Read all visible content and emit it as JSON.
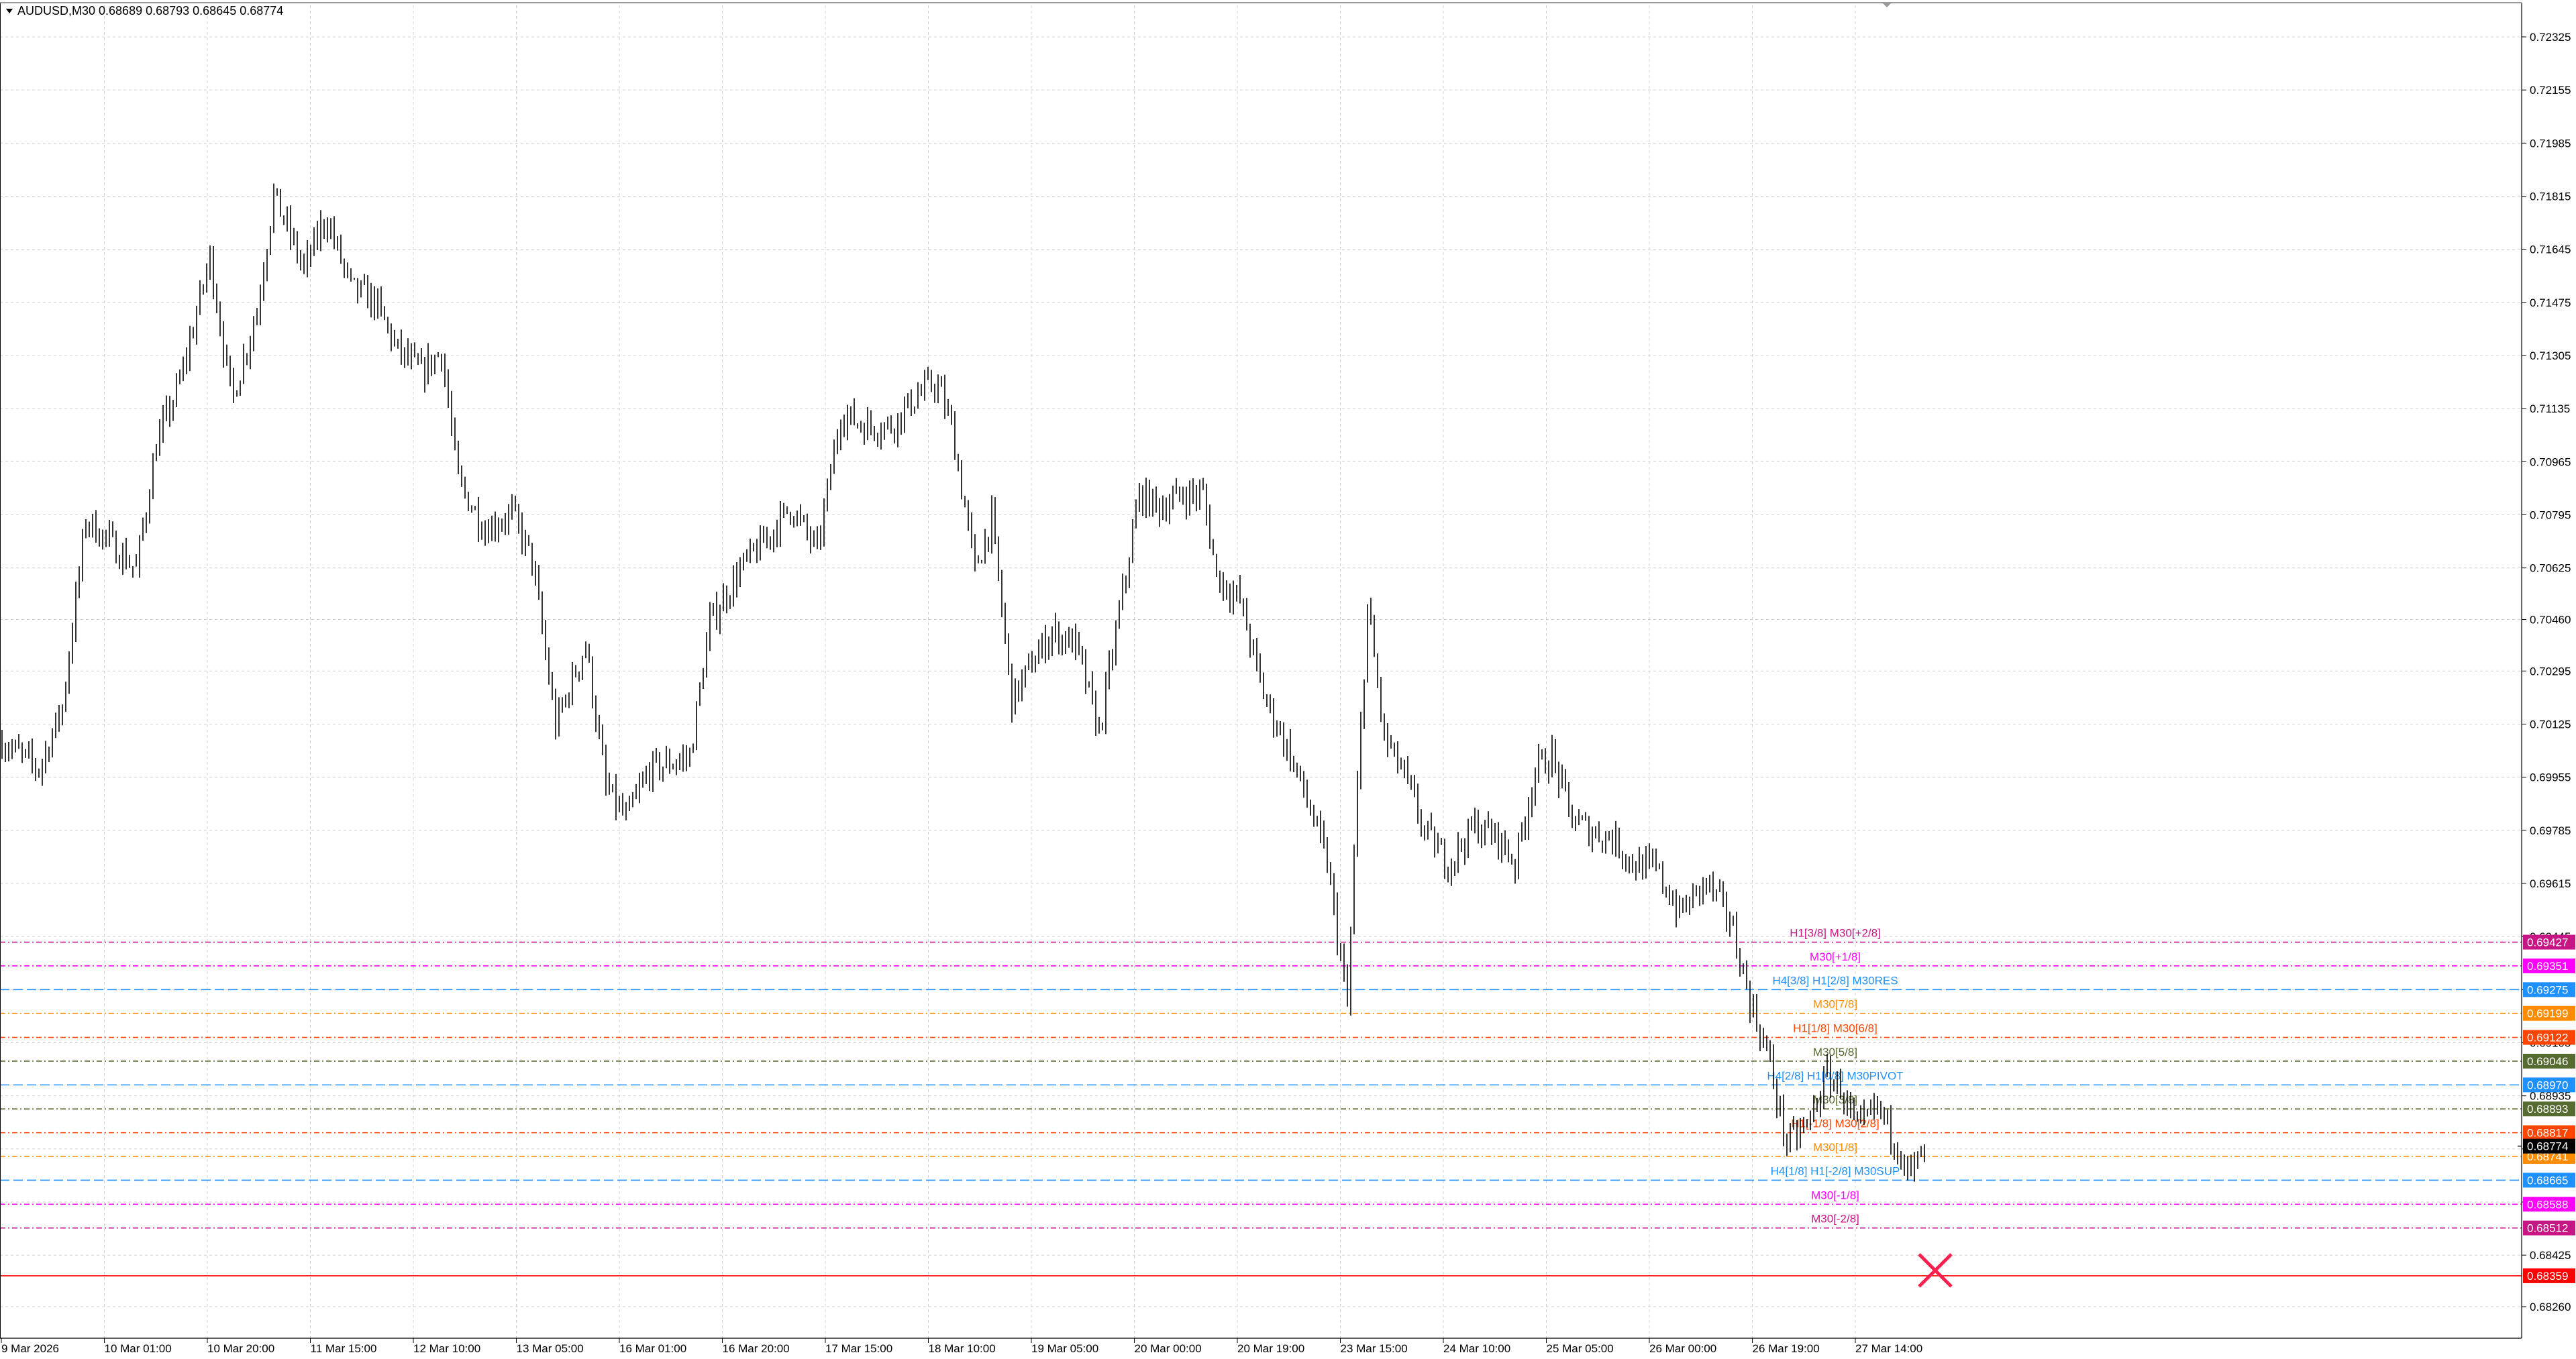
{
  "window": {
    "symbol_header": "AUDUSD,M30  0.68689 0.68793 0.68645 0.68774",
    "menu_icon": "triangle-down-icon"
  },
  "colors": {
    "background": "#ffffff",
    "grid": "#d0d0d0",
    "candle": "#000000",
    "axis_text": "#000000",
    "current_price_bg": "#000000",
    "target_line": "#ff0000",
    "cross_marker": "#ff2050"
  },
  "chart_data": {
    "type": "candlestick",
    "symbol": "AUDUSD",
    "timeframe": "M30",
    "ohlc": {
      "open": 0.68689,
      "high": 0.68793,
      "low": 0.68645,
      "close": 0.68774
    },
    "ylim": [
      0.6818,
      0.724
    ],
    "y_ticks": [
      "0.72325",
      "0.72155",
      "0.71985",
      "0.71815",
      "0.71645",
      "0.71475",
      "0.71305",
      "0.71135",
      "0.70965",
      "0.70795",
      "0.70625",
      "0.70460",
      "0.70295",
      "0.70125",
      "0.69955",
      "0.69785",
      "0.69615",
      "0.69445",
      "0.69275",
      "0.69105",
      "0.68935",
      "0.68765",
      "0.68595",
      "0.68425",
      "0.68260"
    ],
    "x_ticks": [
      "9 Mar 2026",
      "10 Mar 01:00",
      "10 Mar 20:00",
      "11 Mar 15:00",
      "12 Mar 10:00",
      "13 Mar 05:00",
      "16 Mar 01:00",
      "16 Mar 20:00",
      "17 Mar 15:00",
      "18 Mar 10:00",
      "19 Mar 05:00",
      "20 Mar 00:00",
      "20 Mar 19:00",
      "23 Mar 15:00",
      "24 Mar 10:00",
      "25 Mar 05:00",
      "26 Mar 00:00",
      "26 Mar 19:00",
      "27 Mar 14:00"
    ],
    "grid": true,
    "price_path": [
      [
        0,
        0.7007
      ],
      [
        22,
        0.6998
      ],
      [
        36,
        0.7018
      ],
      [
        50,
        0.7078
      ],
      [
        62,
        0.7072
      ],
      [
        80,
        0.7062
      ],
      [
        92,
        0.7102
      ],
      [
        106,
        0.7122
      ],
      [
        124,
        0.7162
      ],
      [
        137,
        0.7116
      ],
      [
        152,
        0.7145
      ],
      [
        162,
        0.7182
      ],
      [
        180,
        0.7158
      ],
      [
        193,
        0.7175
      ],
      [
        208,
        0.7152
      ],
      [
        222,
        0.7148
      ],
      [
        236,
        0.7132
      ],
      [
        250,
        0.7125
      ],
      [
        262,
        0.7132
      ],
      [
        272,
        0.709
      ],
      [
        288,
        0.7075
      ],
      [
        304,
        0.708
      ],
      [
        316,
        0.7065
      ],
      [
        330,
        0.7012
      ],
      [
        348,
        0.7038
      ],
      [
        360,
        0.6992
      ],
      [
        372,
        0.6982
      ],
      [
        386,
        0.6998
      ],
      [
        410,
        0.7002
      ],
      [
        422,
        0.7045
      ],
      [
        440,
        0.7062
      ],
      [
        456,
        0.7072
      ],
      [
        470,
        0.7082
      ],
      [
        486,
        0.7068
      ],
      [
        500,
        0.7112
      ],
      [
        514,
        0.7108
      ],
      [
        530,
        0.7108
      ],
      [
        546,
        0.7118
      ],
      [
        557,
        0.7122
      ],
      [
        566,
        0.7108
      ],
      [
        580,
        0.7062
      ],
      [
        590,
        0.7078
      ],
      [
        602,
        0.702
      ],
      [
        614,
        0.7032
      ],
      [
        626,
        0.7042
      ],
      [
        640,
        0.7038
      ],
      [
        654,
        0.701
      ],
      [
        666,
        0.7048
      ],
      [
        678,
        0.7086
      ],
      [
        690,
        0.7082
      ],
      [
        704,
        0.7086
      ],
      [
        716,
        0.7086
      ],
      [
        724,
        0.706
      ],
      [
        738,
        0.7052
      ],
      [
        752,
        0.7022
      ],
      [
        766,
        0.7005
      ],
      [
        778,
        0.6988
      ],
      [
        790,
        0.6968
      ],
      [
        802,
        0.6922
      ],
      [
        808,
        0.6992
      ],
      [
        814,
        0.705
      ],
      [
        824,
        0.7008
      ],
      [
        836,
        0.6996
      ],
      [
        848,
        0.6978
      ],
      [
        862,
        0.6968
      ],
      [
        878,
        0.698
      ],
      [
        892,
        0.6976
      ],
      [
        902,
        0.6968
      ],
      [
        914,
        0.6998
      ],
      [
        924,
        0.7002
      ],
      [
        936,
        0.6982
      ],
      [
        948,
        0.6978
      ],
      [
        960,
        0.6976
      ],
      [
        972,
        0.6968
      ],
      [
        986,
        0.6966
      ],
      [
        1000,
        0.6952
      ],
      [
        1016,
        0.6962
      ],
      [
        1030,
        0.695
      ],
      [
        1044,
        0.692
      ],
      [
        1052,
        0.6908
      ],
      [
        1064,
        0.6878
      ],
      [
        1076,
        0.6884
      ],
      [
        1088,
        0.69
      ],
      [
        1096,
        0.6896
      ],
      [
        1106,
        0.6882
      ],
      [
        1118,
        0.689
      ],
      [
        1130,
        0.6878
      ],
      [
        1138,
        0.6868
      ],
      [
        1146,
        0.6877
      ]
    ],
    "levels": [
      {
        "price": 0.69427,
        "label": "H1[3/8] M30[+2/8]",
        "price_label": "0.69427",
        "color": "#c71585",
        "dash": "8,4,2,4"
      },
      {
        "price": 0.69351,
        "label": "M30[+1/8]",
        "price_label": "0.69351",
        "color": "#ff00ff",
        "dash": "8,4,2,4"
      },
      {
        "price": 0.69275,
        "label": "H4[3/8] H1[2/8] M30RES",
        "price_label": "0.69275",
        "color": "#1e90ff",
        "dash": "14,6"
      },
      {
        "price": 0.69199,
        "label": "M30[7/8]",
        "price_label": "0.69199",
        "color": "#ff8c00",
        "dash": "8,4,2,4"
      },
      {
        "price": 0.69122,
        "label": "H1[1/8] M30[6/8]",
        "price_label": "0.69122",
        "color": "#ff4500",
        "dash": "8,4,2,4"
      },
      {
        "price": 0.69046,
        "label": "M30[5/8]",
        "price_label": "0.69046",
        "color": "#556b2f",
        "dash": "8,4,2,4"
      },
      {
        "price": 0.6897,
        "label": "H4[2/8] H1[0/8] M30PIVOT",
        "price_label": "0.68970",
        "color": "#1e90ff",
        "dash": "14,6"
      },
      {
        "price": 0.68893,
        "label": "M30[3/8]",
        "price_label": "0.68893",
        "color": "#556b2f",
        "dash": "8,4,2,4"
      },
      {
        "price": 0.68817,
        "label": "H1[-1/8] M30[2/8]",
        "price_label": "0.68817",
        "color": "#ff4500",
        "dash": "8,4,2,4"
      },
      {
        "price": 0.68741,
        "label": "M30[1/8]",
        "price_label": "0.68741",
        "color": "#ff8c00",
        "dash": "8,4,2,4"
      },
      {
        "price": 0.68665,
        "label": "H4[1/8] H1[-2/8] M30SUP",
        "price_label": "0.68665",
        "color": "#1e90ff",
        "dash": "14,6"
      },
      {
        "price": 0.68588,
        "label": "M30[-1/8]",
        "price_label": "0.68588",
        "color": "#ff00ff",
        "dash": "8,4,2,4"
      },
      {
        "price": 0.68512,
        "label": "M30[-2/8]",
        "price_label": "0.68512",
        "color": "#c71585",
        "dash": "8,4,2,4"
      }
    ],
    "current_price": {
      "price": 0.68774,
      "price_label": "0.68774"
    },
    "target": {
      "price": 0.68359,
      "price_label": "0.68359",
      "marker": "cross-icon"
    }
  }
}
